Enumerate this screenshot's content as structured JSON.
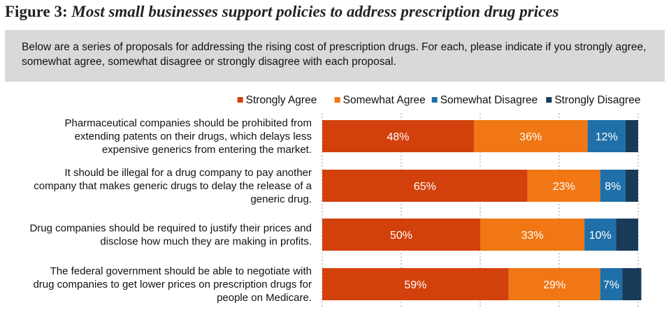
{
  "figure": {
    "label": "Figure 3:",
    "title": "Most small businesses support policies to address prescription drug prices",
    "question": "Below are a series of proposals for addressing the rising cost of prescription drugs. For each, please indicate if you strongly agree, somewhat agree, somewhat disagree or strongly disagree with each proposal."
  },
  "colors": {
    "strongly_agree": "#d2410c",
    "somewhat_agree": "#f07714",
    "somewhat_disagree": "#1f6fa8",
    "strongly_disagree": "#183b5a",
    "grid": "#9a9a9a"
  },
  "chart_data": {
    "type": "bar",
    "orientation": "horizontal",
    "stacked": true,
    "xlim": [
      0,
      100
    ],
    "grid": false,
    "legend_position": "top-right",
    "categories": [
      [
        "Pharmaceutical companies should be prohibited from",
        "extending patents on their drugs, which delays less",
        "expensive generics from entering the market."
      ],
      [
        "It should be illegal for a drug company to pay another",
        "company that makes generic drugs to delay the release of a",
        "generic drug."
      ],
      [
        "Drug companies should be required to justify their prices and",
        "disclose how much they are making in profits."
      ],
      [
        "The federal government should be able to negotiate with",
        "drug companies to get lower prices on prescription drugs for",
        "people on Medicare."
      ]
    ],
    "series": [
      {
        "name": "Strongly Agree",
        "color_key": "strongly_agree",
        "values": [
          48,
          65,
          50,
          59
        ],
        "labels": [
          "48%",
          "65%",
          "50%",
          "59%"
        ]
      },
      {
        "name": "Somewhat Agree",
        "color_key": "somewhat_agree",
        "values": [
          36,
          23,
          33,
          29
        ],
        "labels": [
          "36%",
          "23%",
          "33%",
          "29%"
        ]
      },
      {
        "name": "Somewhat Disagree",
        "color_key": "somewhat_disagree",
        "values": [
          12,
          8,
          10,
          7
        ],
        "labels": [
          "12%",
          "8%",
          "10%",
          "7%"
        ]
      },
      {
        "name": "Strongly Disagree",
        "color_key": "strongly_disagree",
        "values": [
          4,
          4,
          7,
          6
        ],
        "labels": [
          "",
          "",
          "",
          ""
        ]
      }
    ]
  }
}
